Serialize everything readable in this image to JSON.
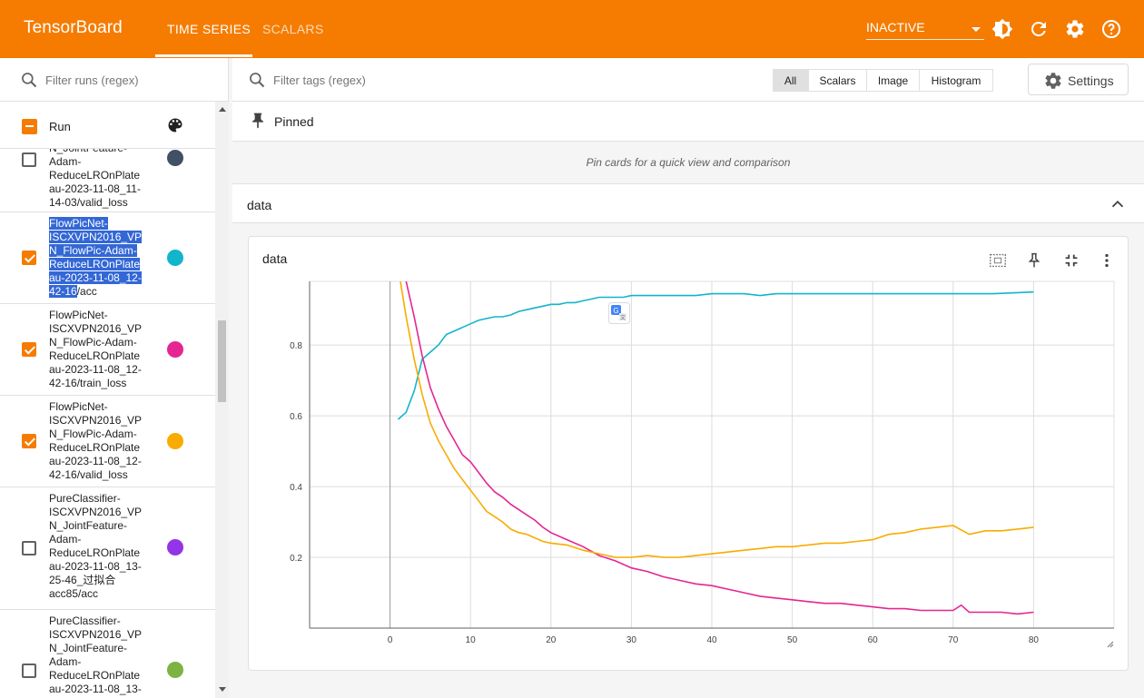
{
  "header": {
    "brand": "TensorBoard",
    "tabs": [
      {
        "label": "TIME SERIES"
      },
      {
        "label": "SCALARS"
      }
    ],
    "status": "INACTIVE",
    "icons": [
      "brightness-icon",
      "refresh-icon",
      "settings-icon",
      "help-icon"
    ]
  },
  "sidebar": {
    "filter_placeholder": "Filter runs (regex)",
    "run_column_label": "Run",
    "runs": [
      {
        "name_pre": "",
        "name_sel": "",
        "name_post": "...N_JointFeature-Adam-ReduceLROnPlateau-2023-11-08_11-14-03/valid_loss",
        "checked": false,
        "color": "#425066"
      },
      {
        "name_pre": "",
        "name_sel": "FlowPicNet-ISCXVPN2016_VPN_FlowPic-Adam-ReduceLROnPlateau-2023-11-08_12-42-16",
        "name_post": "/acc",
        "checked": true,
        "color": "#12b5cb"
      },
      {
        "name_pre": "",
        "name_sel": "",
        "name_post": "FlowPicNet-ISCXVPN2016_VPN_FlowPic-Adam-ReduceLROnPlateau-2023-11-08_12-42-16/train_loss",
        "checked": true,
        "color": "#e52592"
      },
      {
        "name_pre": "",
        "name_sel": "",
        "name_post": "FlowPicNet-ISCXVPN2016_VPN_FlowPic-Adam-ReduceLROnPlateau-2023-11-08_12-42-16/valid_loss",
        "checked": true,
        "color": "#f9ab00"
      },
      {
        "name_pre": "",
        "name_sel": "",
        "name_post": "PureClassifier-ISCXVPN2016_VPN_JointFeature-Adam-ReduceLROnPlateau-2023-11-08_13-25-46_过拟合acc85/acc",
        "checked": false,
        "color": "#9334e6"
      },
      {
        "name_pre": "",
        "name_sel": "",
        "name_post": "PureClassifier-ISCXVPN2016_VPN_JointFeature-Adam-ReduceLROnPlateau-2023-11-08_13-",
        "checked": false,
        "color": "#7cb342"
      }
    ]
  },
  "main": {
    "tag_filter_placeholder": "Filter tags (regex)",
    "type_filters": [
      "All",
      "Scalars",
      "Image",
      "Histogram"
    ],
    "settings_label": "Settings",
    "pinned_label": "Pinned",
    "pinned_hint": "Pin cards for a quick view and comparison",
    "group_label": "data",
    "card_title": "data"
  },
  "colors": {
    "accent": "#f57c00",
    "acc": "#12b5cb",
    "train_loss": "#e52592",
    "valid_loss": "#f9ab00"
  },
  "chart_data": {
    "type": "line",
    "title": "data",
    "xlim": [
      -10,
      90
    ],
    "ylim": [
      0,
      0.98
    ],
    "x_ticks": [
      0,
      10,
      20,
      30,
      40,
      50,
      60,
      70,
      80
    ],
    "y_ticks": [
      0.2,
      0.4,
      0.6,
      0.8
    ],
    "grid": true,
    "series": [
      {
        "name": "FlowPicNet-ISCXVPN2016_VPN_FlowPic-Adam-ReduceLROnPlateau-2023-11-08_12-42-16/acc",
        "color": "#12b5cb",
        "x": [
          1,
          2,
          3,
          4,
          5,
          6,
          7,
          8,
          9,
          10,
          11,
          12,
          13,
          14,
          15,
          16,
          17,
          18,
          19,
          20,
          21,
          22,
          23,
          24,
          25,
          26,
          27,
          28,
          29,
          30,
          32,
          34,
          36,
          38,
          40,
          42,
          44,
          46,
          48,
          50,
          55,
          60,
          65,
          70,
          75,
          80
        ],
        "y": [
          0.59,
          0.61,
          0.67,
          0.76,
          0.78,
          0.8,
          0.83,
          0.84,
          0.85,
          0.86,
          0.87,
          0.875,
          0.88,
          0.88,
          0.885,
          0.895,
          0.9,
          0.905,
          0.91,
          0.915,
          0.915,
          0.92,
          0.92,
          0.925,
          0.93,
          0.935,
          0.935,
          0.935,
          0.935,
          0.94,
          0.94,
          0.94,
          0.94,
          0.94,
          0.945,
          0.945,
          0.945,
          0.94,
          0.945,
          0.945,
          0.945,
          0.945,
          0.945,
          0.945,
          0.945,
          0.95
        ]
      },
      {
        "name": "FlowPicNet-ISCXVPN2016_VPN_FlowPic-Adam-ReduceLROnPlateau-2023-11-08_12-42-16/train_loss",
        "color": "#e52592",
        "x": [
          1,
          2,
          3,
          4,
          5,
          6,
          7,
          8,
          9,
          10,
          11,
          12,
          13,
          14,
          15,
          16,
          17,
          18,
          19,
          20,
          22,
          24,
          26,
          28,
          30,
          32,
          34,
          36,
          38,
          40,
          42,
          44,
          46,
          48,
          50,
          52,
          54,
          56,
          58,
          60,
          62,
          64,
          66,
          68,
          70,
          71,
          72,
          74,
          76,
          78,
          80
        ],
        "y": [
          1.05,
          0.98,
          0.88,
          0.77,
          0.68,
          0.62,
          0.57,
          0.53,
          0.49,
          0.47,
          0.44,
          0.41,
          0.385,
          0.37,
          0.35,
          0.335,
          0.32,
          0.305,
          0.285,
          0.27,
          0.25,
          0.23,
          0.205,
          0.19,
          0.17,
          0.16,
          0.145,
          0.135,
          0.125,
          0.12,
          0.11,
          0.1,
          0.09,
          0.085,
          0.08,
          0.075,
          0.07,
          0.07,
          0.065,
          0.06,
          0.055,
          0.055,
          0.05,
          0.05,
          0.05,
          0.065,
          0.045,
          0.045,
          0.045,
          0.04,
          0.045
        ]
      },
      {
        "name": "FlowPicNet-ISCXVPN2016_VPN_FlowPic-Adam-ReduceLROnPlateau-2023-11-08_12-42-16/valid_loss",
        "color": "#f9ab00",
        "x": [
          1,
          2,
          3,
          4,
          5,
          6,
          7,
          8,
          9,
          10,
          11,
          12,
          13,
          14,
          15,
          16,
          17,
          18,
          19,
          20,
          22,
          24,
          26,
          28,
          30,
          32,
          34,
          36,
          38,
          40,
          42,
          44,
          46,
          48,
          50,
          52,
          54,
          56,
          58,
          60,
          62,
          64,
          66,
          68,
          70,
          72,
          74,
          76,
          78,
          80
        ],
        "y": [
          1.02,
          0.88,
          0.76,
          0.66,
          0.58,
          0.53,
          0.49,
          0.45,
          0.42,
          0.39,
          0.36,
          0.33,
          0.315,
          0.3,
          0.28,
          0.27,
          0.265,
          0.255,
          0.245,
          0.24,
          0.235,
          0.22,
          0.21,
          0.2,
          0.2,
          0.205,
          0.2,
          0.2,
          0.205,
          0.21,
          0.215,
          0.22,
          0.225,
          0.23,
          0.23,
          0.235,
          0.24,
          0.24,
          0.245,
          0.25,
          0.265,
          0.27,
          0.28,
          0.285,
          0.29,
          0.265,
          0.275,
          0.275,
          0.28,
          0.285
        ]
      }
    ]
  }
}
